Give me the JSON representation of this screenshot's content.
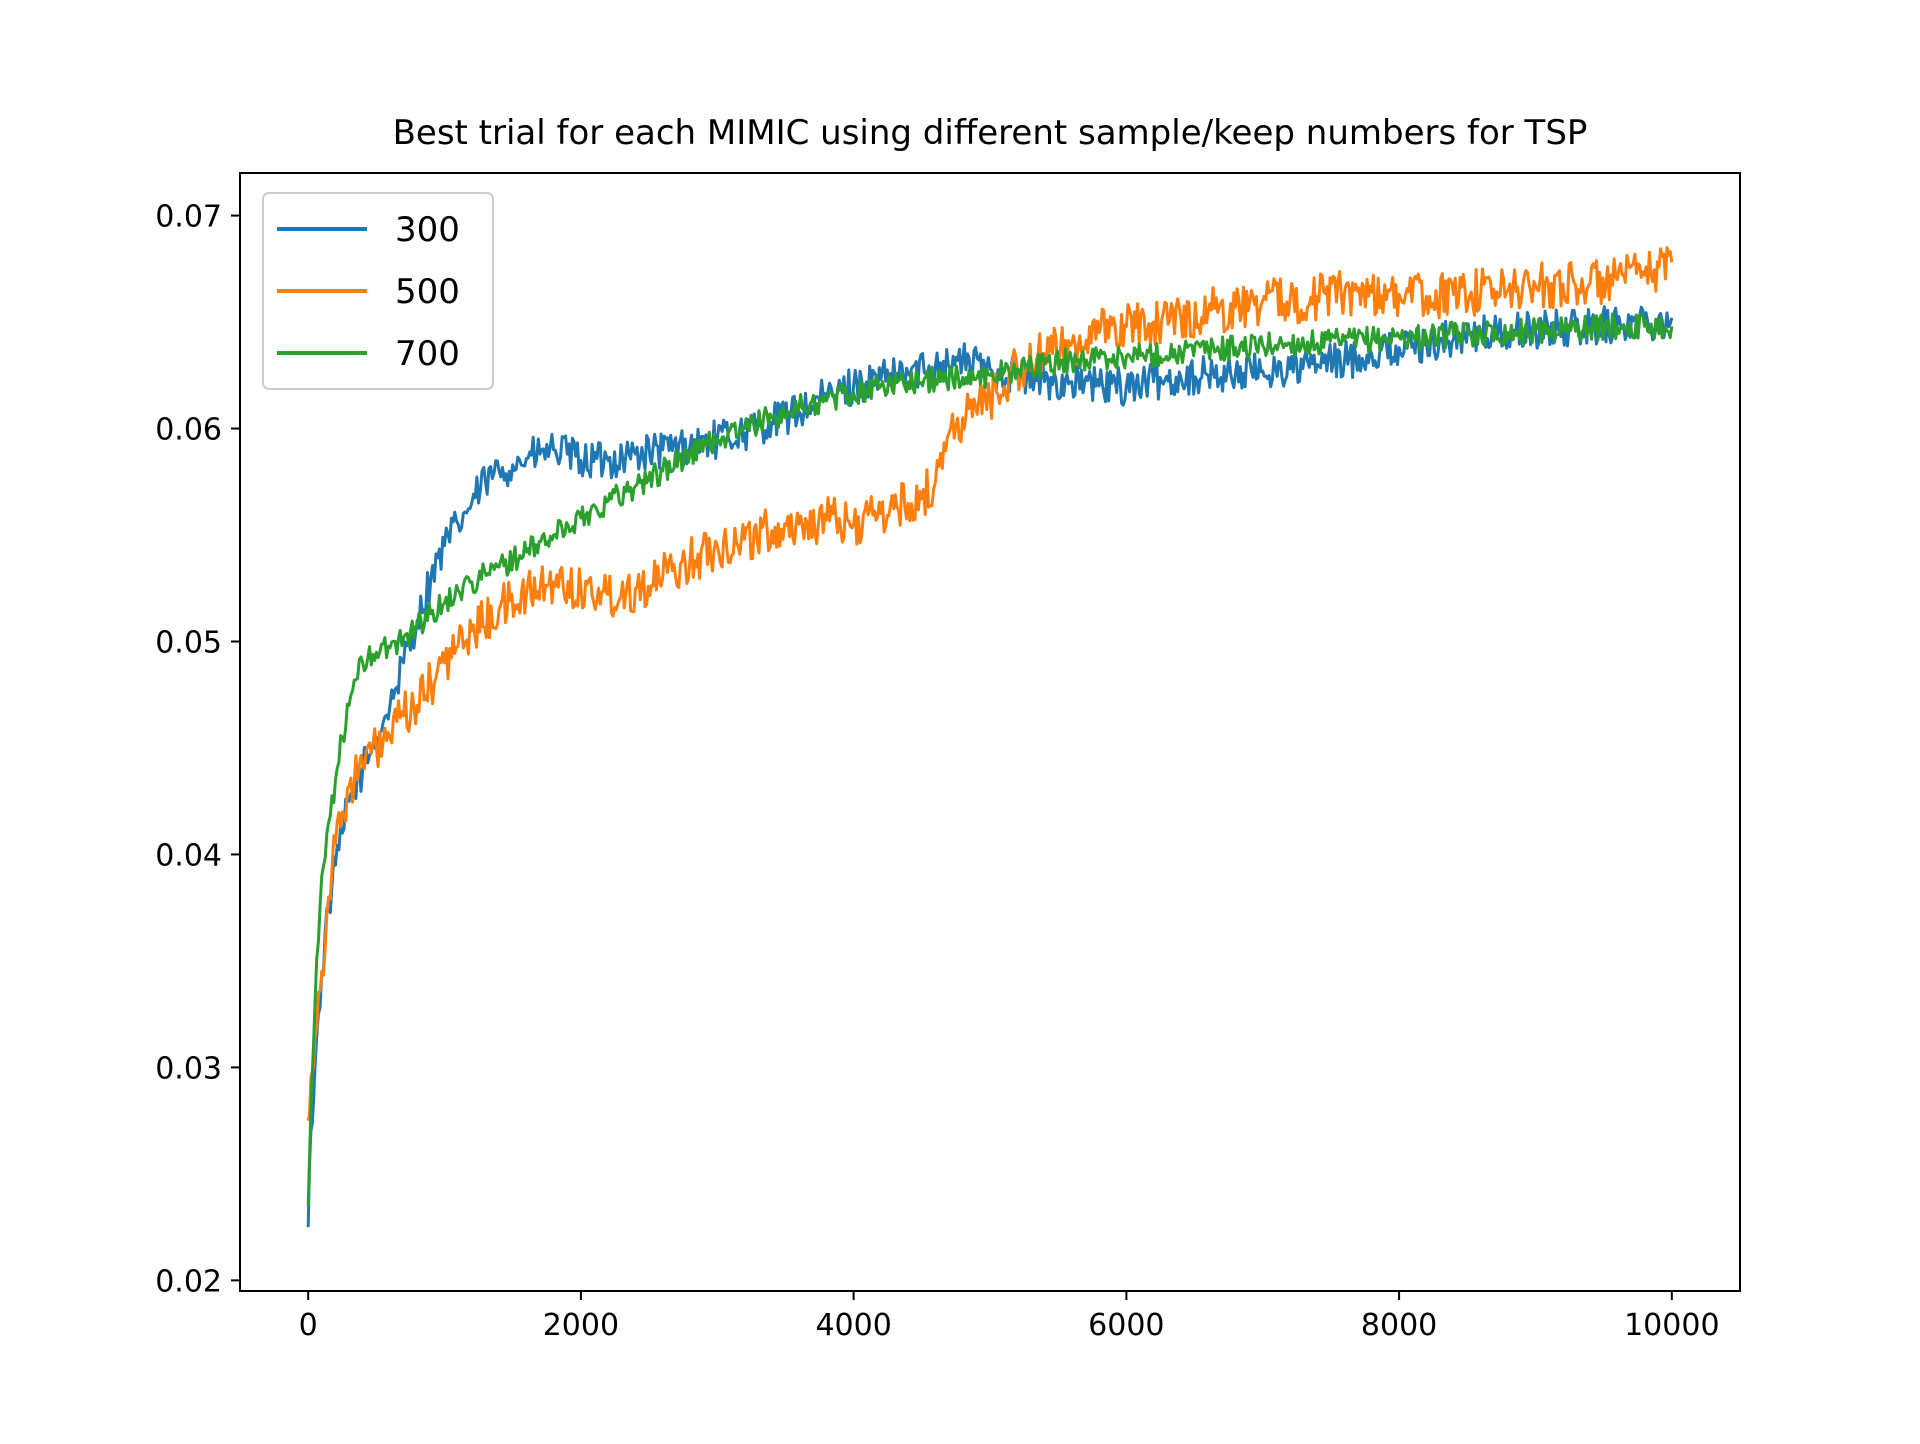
{
  "chart_data": {
    "type": "line",
    "title": "Best trial for each MIMIC using different sample/keep numbers for TSP",
    "xlabel": "",
    "ylabel": "",
    "xlim": [
      -500,
      10500
    ],
    "ylim": [
      0.0195,
      0.072
    ],
    "x_ticks": [
      0,
      2000,
      4000,
      6000,
      8000,
      10000
    ],
    "x_tick_labels": [
      "0",
      "2000",
      "4000",
      "6000",
      "8000",
      "10000"
    ],
    "y_ticks": [
      0.02,
      0.03,
      0.04,
      0.05,
      0.06,
      0.07
    ],
    "y_tick_labels": [
      "0.02",
      "0.03",
      "0.04",
      "0.05",
      "0.06",
      "0.07"
    ],
    "grid": false,
    "legend_position": "upper left",
    "series": [
      {
        "name": "300",
        "color": "#1f77b4",
        "x": [
          0,
          20,
          50,
          100,
          150,
          200,
          250,
          300,
          400,
          500,
          600,
          700,
          800,
          900,
          1000,
          1100,
          1200,
          1300,
          1400,
          1500,
          1600,
          1700,
          1800,
          1900,
          2000,
          2200,
          2400,
          2600,
          2800,
          3000,
          3200,
          3400,
          3600,
          3800,
          4000,
          4200,
          4400,
          4600,
          4800,
          5000,
          5200,
          5400,
          5600,
          5800,
          6000,
          6200,
          6400,
          6600,
          6800,
          7000,
          7200,
          7400,
          7600,
          7800,
          8000,
          8200,
          8400,
          8600,
          8800,
          9000,
          9200,
          9400,
          9600,
          9800,
          10000
        ],
        "y": [
          0.0225,
          0.027,
          0.03,
          0.0345,
          0.0375,
          0.0395,
          0.041,
          0.0425,
          0.044,
          0.0455,
          0.047,
          0.049,
          0.051,
          0.053,
          0.0545,
          0.0555,
          0.0565,
          0.0575,
          0.058,
          0.0583,
          0.0586,
          0.0588,
          0.059,
          0.0588,
          0.0585,
          0.0585,
          0.0588,
          0.059,
          0.0592,
          0.0595,
          0.0598,
          0.0603,
          0.0608,
          0.0615,
          0.062,
          0.0623,
          0.0626,
          0.063,
          0.0632,
          0.0628,
          0.0625,
          0.0622,
          0.0622,
          0.062,
          0.062,
          0.0622,
          0.0624,
          0.0625,
          0.0626,
          0.0627,
          0.0628,
          0.063,
          0.0632,
          0.0635,
          0.0638,
          0.064,
          0.0642,
          0.0644,
          0.0645,
          0.0646,
          0.0647,
          0.0648,
          0.0649,
          0.065,
          0.0652
        ]
      },
      {
        "name": "500",
        "color": "#ff7f0e",
        "x": [
          0,
          20,
          50,
          100,
          150,
          200,
          250,
          300,
          400,
          500,
          600,
          700,
          800,
          900,
          1000,
          1100,
          1200,
          1400,
          1600,
          1800,
          2000,
          2200,
          2400,
          2600,
          2800,
          3000,
          3200,
          3400,
          3600,
          3800,
          4000,
          4200,
          4400,
          4500,
          4600,
          4700,
          4800,
          5000,
          5200,
          5400,
          5600,
          5800,
          6000,
          6200,
          6400,
          6600,
          6800,
          7000,
          7200,
          7400,
          7600,
          7800,
          8000,
          8200,
          8400,
          8600,
          8800,
          9000,
          9200,
          9400,
          9600,
          9800,
          10000
        ],
        "y": [
          0.0275,
          0.0295,
          0.0315,
          0.0345,
          0.038,
          0.0405,
          0.042,
          0.0432,
          0.0442,
          0.045,
          0.0455,
          0.0465,
          0.047,
          0.048,
          0.049,
          0.0498,
          0.0505,
          0.0515,
          0.0522,
          0.0528,
          0.0525,
          0.0522,
          0.0525,
          0.053,
          0.0538,
          0.0545,
          0.0548,
          0.0552,
          0.0555,
          0.0557,
          0.0555,
          0.056,
          0.0565,
          0.0567,
          0.0575,
          0.0598,
          0.0605,
          0.0615,
          0.0628,
          0.0635,
          0.064,
          0.0645,
          0.0648,
          0.065,
          0.0652,
          0.0655,
          0.0657,
          0.066,
          0.066,
          0.0662,
          0.0664,
          0.0664,
          0.0663,
          0.0662,
          0.0663,
          0.0664,
          0.0665,
          0.0667,
          0.0668,
          0.0668,
          0.067,
          0.0672,
          0.0678
        ]
      },
      {
        "name": "700",
        "color": "#2ca02c",
        "x": [
          0,
          20,
          50,
          100,
          150,
          200,
          250,
          300,
          350,
          400,
          500,
          600,
          700,
          800,
          900,
          1000,
          1100,
          1200,
          1400,
          1600,
          1800,
          2000,
          2200,
          2400,
          2600,
          2800,
          3000,
          3200,
          3400,
          3600,
          3800,
          4000,
          4200,
          4400,
          4600,
          4800,
          5000,
          5200,
          5400,
          5600,
          5800,
          6000,
          6200,
          6400,
          6600,
          6800,
          7000,
          7200,
          7400,
          7600,
          7800,
          8000,
          8200,
          8400,
          8600,
          8800,
          9000,
          9200,
          9400,
          9600,
          9800,
          10000
        ],
        "y": [
          0.0235,
          0.028,
          0.033,
          0.039,
          0.0415,
          0.0435,
          0.0455,
          0.047,
          0.0482,
          0.049,
          0.0495,
          0.0497,
          0.0502,
          0.0508,
          0.0513,
          0.0518,
          0.0524,
          0.0528,
          0.0535,
          0.0542,
          0.055,
          0.0558,
          0.0566,
          0.0573,
          0.058,
          0.0588,
          0.0595,
          0.06,
          0.0605,
          0.061,
          0.0613,
          0.0617,
          0.062,
          0.0622,
          0.0623,
          0.0624,
          0.0625,
          0.0628,
          0.063,
          0.0632,
          0.0633,
          0.0634,
          0.0635,
          0.0636,
          0.0637,
          0.0638,
          0.0639,
          0.064,
          0.064,
          0.0641,
          0.0642,
          0.0643,
          0.0643,
          0.0644,
          0.0645,
          0.0645,
          0.0646,
          0.0647,
          0.0647,
          0.0648,
          0.0648,
          0.0648
        ]
      }
    ]
  }
}
